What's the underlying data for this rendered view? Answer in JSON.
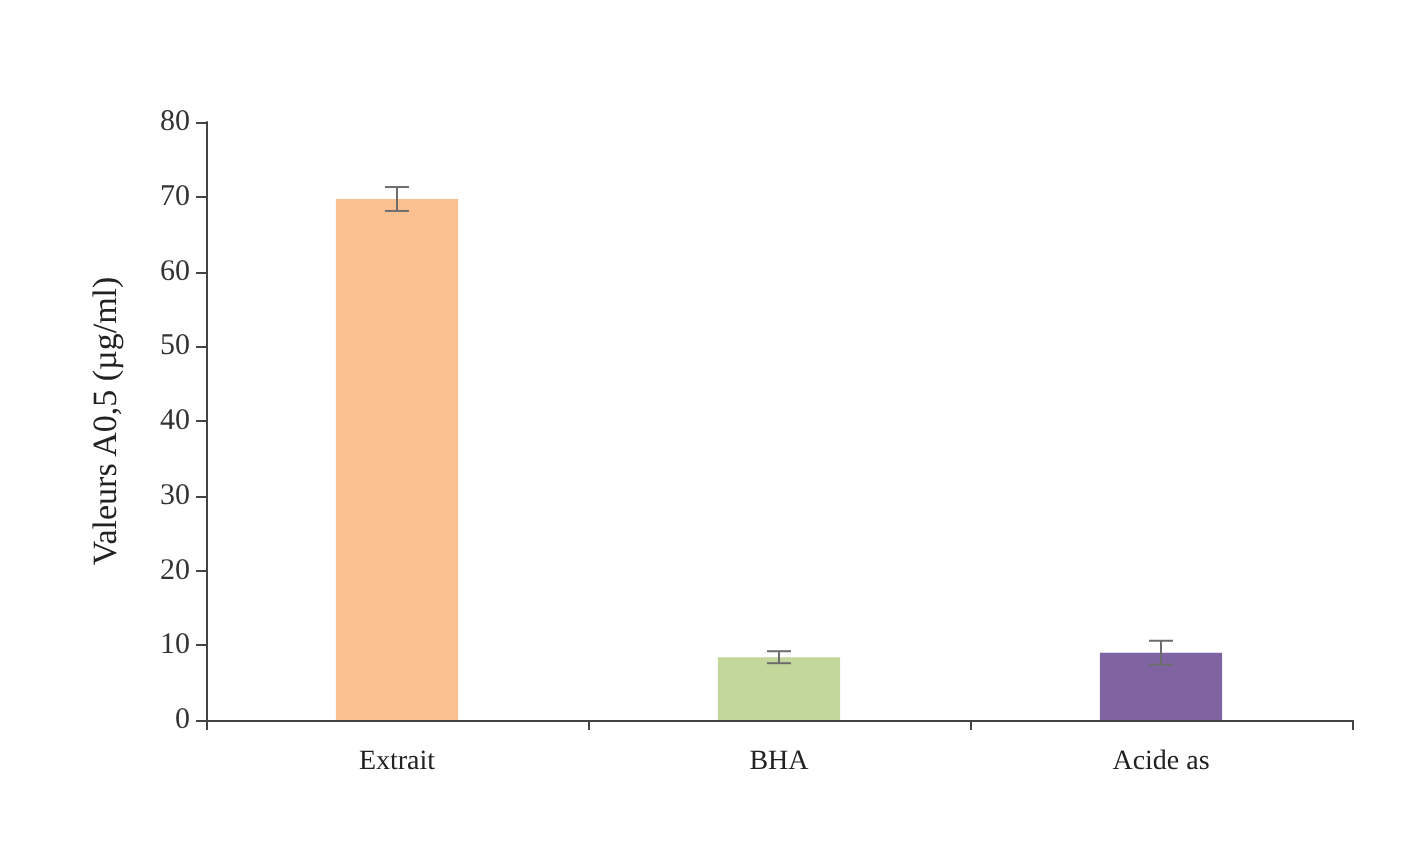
{
  "chart_data": {
    "type": "bar",
    "ylabel": "Valeurs A0,5 (µg/ml)",
    "categories": [
      "Extrait",
      "BHA",
      "Acide as"
    ],
    "values": [
      69.7,
      8.4,
      9.0
    ],
    "colors": [
      "#fac090",
      "#c3d69b",
      "#8064a2"
    ],
    "errors": [
      1.6,
      0.8,
      1.6
    ],
    "ylim": [
      0,
      80
    ],
    "yticks": [
      0,
      10,
      20,
      30,
      40,
      50,
      60,
      70,
      80
    ],
    "grid": false
  }
}
